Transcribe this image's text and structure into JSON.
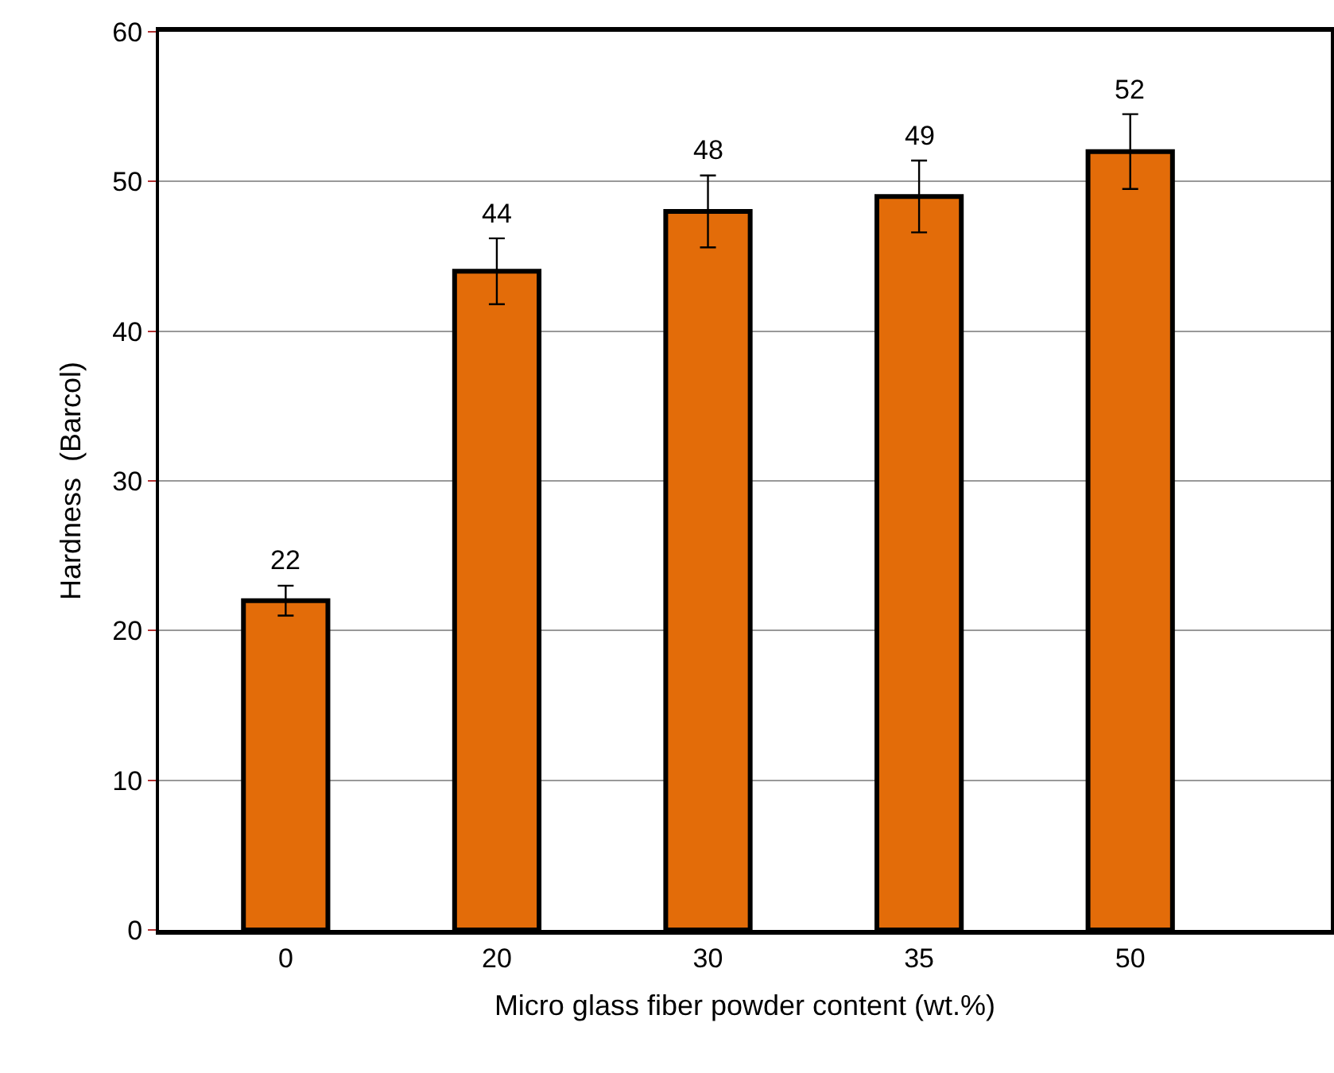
{
  "chart_data": {
    "type": "bar",
    "xlabel": "Micro glass fiber powder content (wt.%)",
    "ylabel": "Hardness  (Barcol)",
    "categories": [
      "0",
      "20",
      "30",
      "35",
      "50"
    ],
    "values": [
      22,
      44,
      48,
      49,
      52
    ],
    "errors": [
      1,
      2.2,
      2.4,
      2.4,
      2.5
    ],
    "color": "#e36c09",
    "data_labels": true,
    "ylim": [
      0,
      60
    ],
    "yticks": [
      0,
      10,
      20,
      30,
      40,
      50,
      60
    ],
    "grid": "y",
    "legend": false
  }
}
